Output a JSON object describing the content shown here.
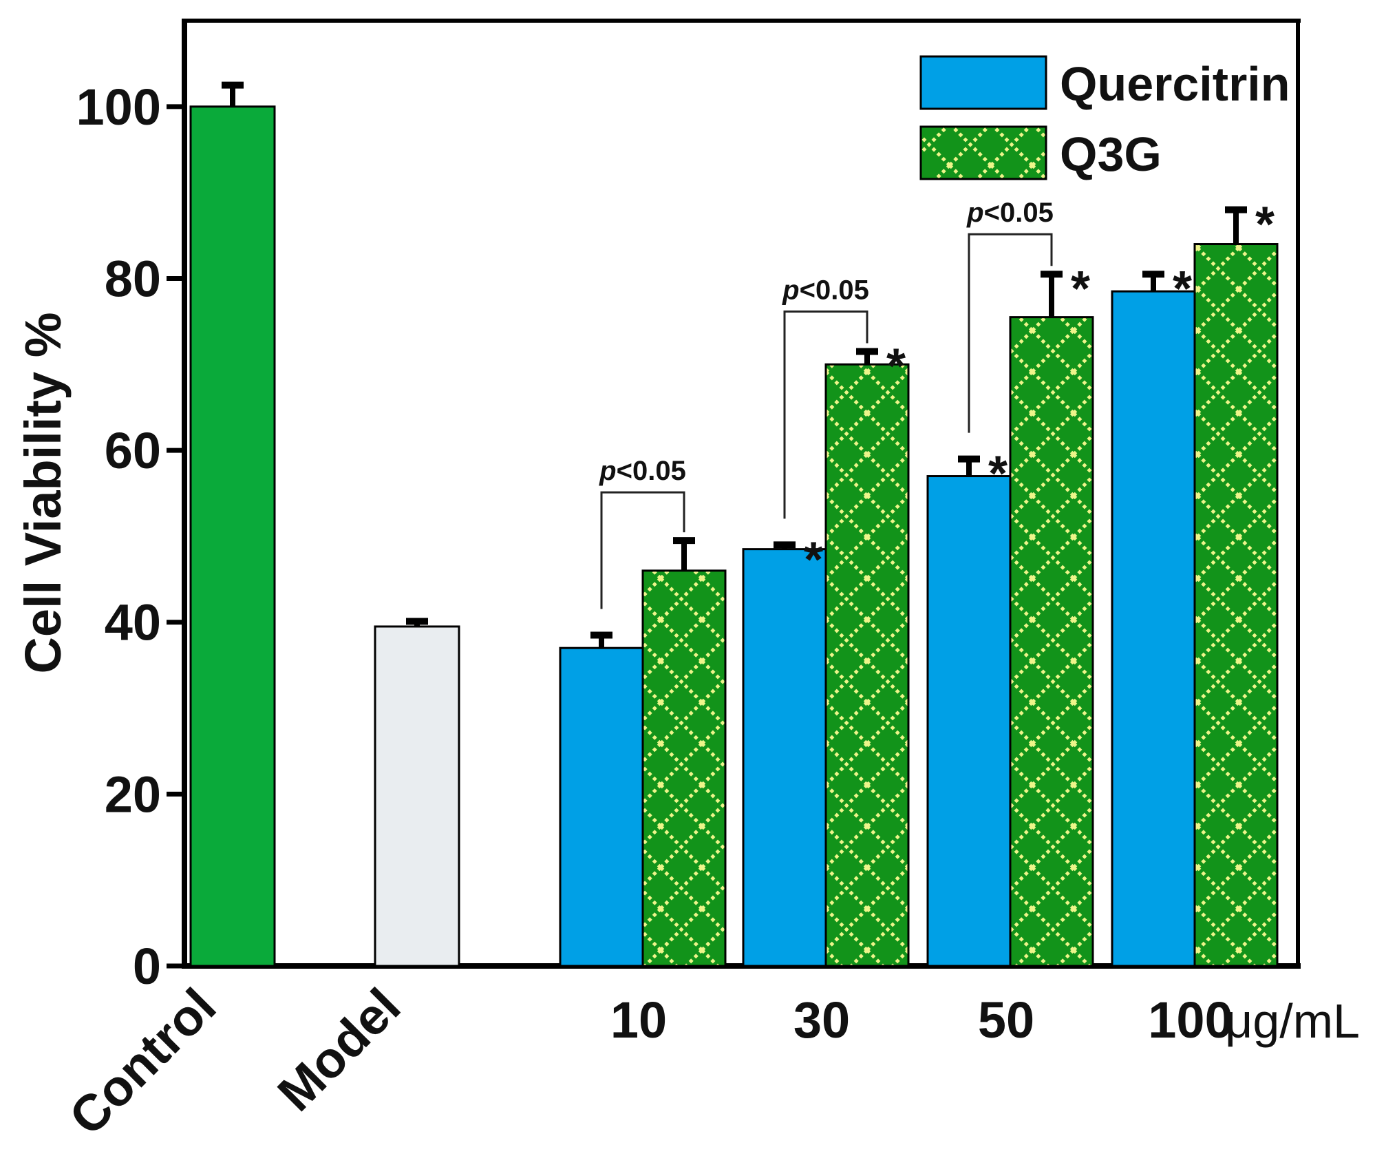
{
  "chart_data": {
    "type": "bar",
    "title": "",
    "xlabel": "",
    "ylabel": "Cell Viability %",
    "ylim": [
      0,
      110
    ],
    "yticks": [
      0,
      20,
      40,
      60,
      80,
      100
    ],
    "yticks_labels": [
      "0",
      "20",
      "40",
      "60",
      "80",
      "100"
    ],
    "unit_label": "μg/mL",
    "grid": false,
    "legend_position": "top-right",
    "single_groups": [
      {
        "label": "Control",
        "value": 100,
        "error": 2.5,
        "color": "#0aaa3a"
      },
      {
        "label": "Model",
        "value": 39.5,
        "error": 0.6,
        "color": "#e9edf0"
      }
    ],
    "categories": [
      "10",
      "30",
      "50",
      "100"
    ],
    "series": [
      {
        "name": "Quercitrin",
        "values": [
          37,
          48.5,
          57,
          78.5
        ],
        "errors": [
          1.5,
          0.5,
          2,
          2
        ],
        "color": "#00a0e6",
        "stars": [
          false,
          true,
          true,
          true
        ]
      },
      {
        "name": "Q3G",
        "values": [
          46,
          70,
          75.5,
          84
        ],
        "errors": [
          3.5,
          1.5,
          5,
          4
        ],
        "color": "#12931a",
        "pattern_color": "#eef58a",
        "stars": [
          false,
          true,
          true,
          true
        ]
      }
    ],
    "annotations": [
      {
        "category": "10",
        "text": "p<0.05"
      },
      {
        "category": "30",
        "text": "p<0.05"
      },
      {
        "category": "50",
        "text": "p<0.05"
      }
    ],
    "star_text": "*"
  }
}
